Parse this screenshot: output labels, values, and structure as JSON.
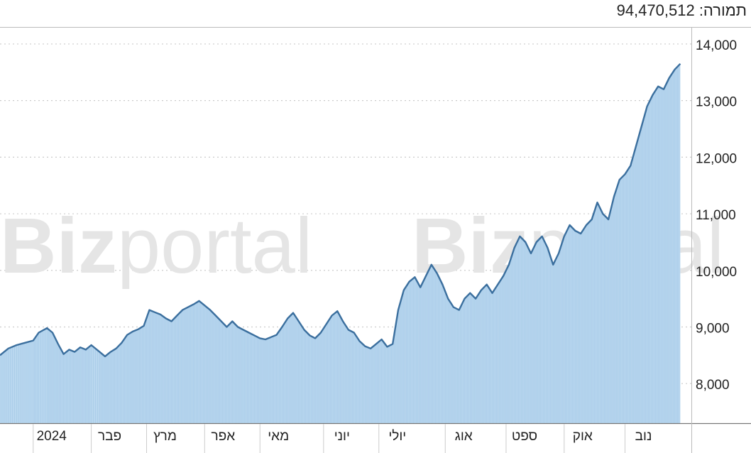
{
  "header": {
    "turnover_label": "תמורה:",
    "turnover_value": "94,470,512"
  },
  "watermark": {
    "brand_bold": "Biz",
    "brand_light": "portal"
  },
  "colors": {
    "line": "#3b6f9e",
    "fill": "#b9d7ef",
    "grid": "#cccccc",
    "axis": "#999999",
    "watermark": "#e5e5e5"
  },
  "chart_data": {
    "type": "area",
    "title": "",
    "xlabel": "",
    "ylabel": "",
    "ylim": [
      7300,
      14300
    ],
    "yticks": [
      8000,
      9000,
      10000,
      11000,
      12000,
      13000,
      14000
    ],
    "ytick_labels": [
      "8,000",
      "9,000",
      "10,000",
      "11,000",
      "12,000",
      "13,000",
      "14,000"
    ],
    "x_range": [
      0,
      250
    ],
    "xticks": [
      {
        "x": 12,
        "label": "2024"
      },
      {
        "x": 33,
        "label": "פבר"
      },
      {
        "x": 53,
        "label": "מרץ"
      },
      {
        "x": 74,
        "label": "אפר"
      },
      {
        "x": 94,
        "label": "מאי"
      },
      {
        "x": 117,
        "label": "יוני"
      },
      {
        "x": 137,
        "label": "יולי"
      },
      {
        "x": 161,
        "label": "אוג"
      },
      {
        "x": 183,
        "label": "ספט"
      },
      {
        "x": 204,
        "label": "אוק"
      },
      {
        "x": 226,
        "label": "נוב"
      }
    ],
    "series": [
      {
        "points": [
          [
            0,
            8500
          ],
          [
            3,
            8620
          ],
          [
            6,
            8680
          ],
          [
            9,
            8720
          ],
          [
            12,
            8760
          ],
          [
            14,
            8900
          ],
          [
            17,
            8980
          ],
          [
            19,
            8900
          ],
          [
            21,
            8700
          ],
          [
            23,
            8520
          ],
          [
            25,
            8600
          ],
          [
            27,
            8560
          ],
          [
            29,
            8640
          ],
          [
            31,
            8600
          ],
          [
            33,
            8680
          ],
          [
            36,
            8560
          ],
          [
            38,
            8480
          ],
          [
            40,
            8560
          ],
          [
            42,
            8620
          ],
          [
            44,
            8720
          ],
          [
            46,
            8860
          ],
          [
            48,
            8920
          ],
          [
            50,
            8960
          ],
          [
            52,
            9020
          ],
          [
            54,
            9300
          ],
          [
            56,
            9260
          ],
          [
            58,
            9220
          ],
          [
            60,
            9150
          ],
          [
            62,
            9100
          ],
          [
            64,
            9200
          ],
          [
            66,
            9300
          ],
          [
            68,
            9350
          ],
          [
            70,
            9400
          ],
          [
            72,
            9460
          ],
          [
            74,
            9380
          ],
          [
            76,
            9300
          ],
          [
            78,
            9200
          ],
          [
            80,
            9100
          ],
          [
            82,
            9000
          ],
          [
            84,
            9100
          ],
          [
            86,
            9000
          ],
          [
            88,
            8950
          ],
          [
            90,
            8900
          ],
          [
            92,
            8850
          ],
          [
            94,
            8800
          ],
          [
            96,
            8780
          ],
          [
            98,
            8820
          ],
          [
            100,
            8860
          ],
          [
            102,
            9000
          ],
          [
            104,
            9150
          ],
          [
            106,
            9250
          ],
          [
            108,
            9100
          ],
          [
            110,
            8950
          ],
          [
            112,
            8850
          ],
          [
            114,
            8800
          ],
          [
            116,
            8900
          ],
          [
            118,
            9050
          ],
          [
            120,
            9200
          ],
          [
            122,
            9280
          ],
          [
            124,
            9100
          ],
          [
            126,
            8950
          ],
          [
            128,
            8900
          ],
          [
            130,
            8750
          ],
          [
            132,
            8660
          ],
          [
            134,
            8620
          ],
          [
            136,
            8700
          ],
          [
            138,
            8780
          ],
          [
            140,
            8650
          ],
          [
            142,
            8700
          ],
          [
            144,
            9300
          ],
          [
            146,
            9650
          ],
          [
            148,
            9800
          ],
          [
            150,
            9880
          ],
          [
            152,
            9700
          ],
          [
            154,
            9900
          ],
          [
            156,
            10100
          ],
          [
            158,
            9950
          ],
          [
            160,
            9750
          ],
          [
            162,
            9500
          ],
          [
            164,
            9350
          ],
          [
            166,
            9300
          ],
          [
            168,
            9500
          ],
          [
            170,
            9600
          ],
          [
            172,
            9500
          ],
          [
            174,
            9650
          ],
          [
            176,
            9750
          ],
          [
            178,
            9600
          ],
          [
            180,
            9750
          ],
          [
            182,
            9900
          ],
          [
            184,
            10100
          ],
          [
            186,
            10400
          ],
          [
            188,
            10600
          ],
          [
            190,
            10500
          ],
          [
            192,
            10300
          ],
          [
            194,
            10500
          ],
          [
            196,
            10600
          ],
          [
            198,
            10400
          ],
          [
            200,
            10100
          ],
          [
            202,
            10300
          ],
          [
            204,
            10600
          ],
          [
            206,
            10800
          ],
          [
            208,
            10700
          ],
          [
            210,
            10650
          ],
          [
            212,
            10800
          ],
          [
            214,
            10900
          ],
          [
            216,
            11200
          ],
          [
            218,
            11000
          ],
          [
            220,
            10900
          ],
          [
            222,
            11300
          ],
          [
            224,
            11600
          ],
          [
            226,
            11700
          ],
          [
            228,
            11850
          ],
          [
            230,
            12200
          ],
          [
            232,
            12550
          ],
          [
            234,
            12900
          ],
          [
            236,
            13100
          ],
          [
            238,
            13250
          ],
          [
            240,
            13200
          ],
          [
            242,
            13400
          ],
          [
            244,
            13550
          ],
          [
            246,
            13650
          ]
        ]
      }
    ]
  }
}
